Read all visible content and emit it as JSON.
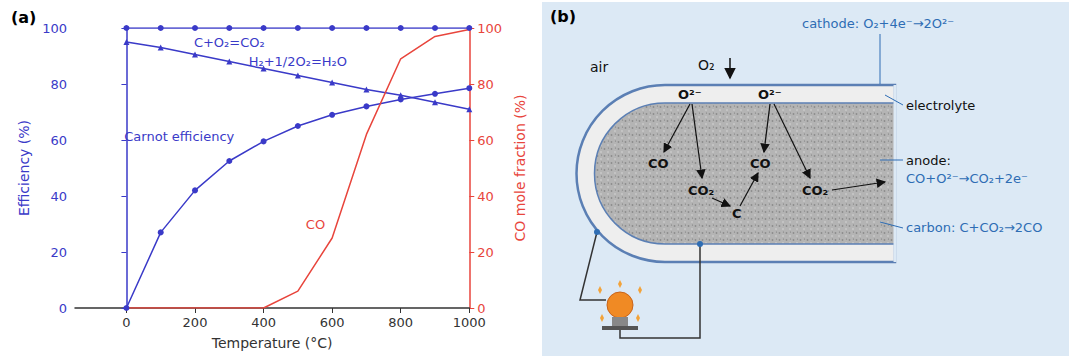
{
  "chart_data": {
    "type": "line",
    "title": "(a)",
    "xlabel": "Temperature (°C)",
    "ylabel": "Efficiency (%)",
    "y2label": "CO mole fraction (%)",
    "x": [
      0,
      100,
      200,
      300,
      400,
      500,
      600,
      700,
      800,
      900,
      1000
    ],
    "xlim": [
      -150,
      1000
    ],
    "xticks": [
      0,
      200,
      400,
      600,
      800,
      1000
    ],
    "ylim": [
      0,
      100
    ],
    "yticks": [
      0,
      20,
      40,
      60,
      80,
      100
    ],
    "y2lim": [
      0,
      100
    ],
    "y2ticks": [
      0,
      20,
      40,
      60,
      80,
      100
    ],
    "grid": false,
    "series": [
      {
        "name": "C+O₂=CO₂",
        "color": "#3a3ac8",
        "marker": "circle",
        "values": [
          100,
          100,
          100,
          100,
          100,
          100,
          100,
          100,
          100,
          100,
          100
        ]
      },
      {
        "name": "H₂+1/2O₂=H₂O",
        "color": "#3a3ac8",
        "marker": "triangle",
        "values": [
          95,
          93,
          90.5,
          88,
          85.5,
          83,
          80.5,
          78,
          76,
          73.5,
          71
        ]
      },
      {
        "name": "Carnot efficiency",
        "color": "#3a3ac8",
        "marker": "circle",
        "values": [
          0,
          27,
          42,
          52.5,
          59.5,
          65,
          69,
          72,
          74.5,
          76.5,
          78.5
        ]
      },
      {
        "name": "CO",
        "color": "#e8453c",
        "marker": "none",
        "axis": "y2",
        "values": [
          0,
          0,
          0,
          0,
          0,
          6,
          25,
          62,
          89,
          97,
          99.5
        ]
      }
    ]
  },
  "diagram": {
    "label": "(b)",
    "air": "air",
    "oxygen": "O₂",
    "cathode": "cathode: O₂+4e⁻→2O²⁻",
    "electrolyte": "electrolyte",
    "anode": [
      "anode:",
      "CO+O²⁻→CO₂+2e⁻"
    ],
    "carbon": "carbon: C+CO₂→2CO",
    "species": [
      "O²⁻",
      "O²⁻",
      "CO",
      "CO₂",
      "C",
      "CO",
      "CO₂"
    ]
  }
}
